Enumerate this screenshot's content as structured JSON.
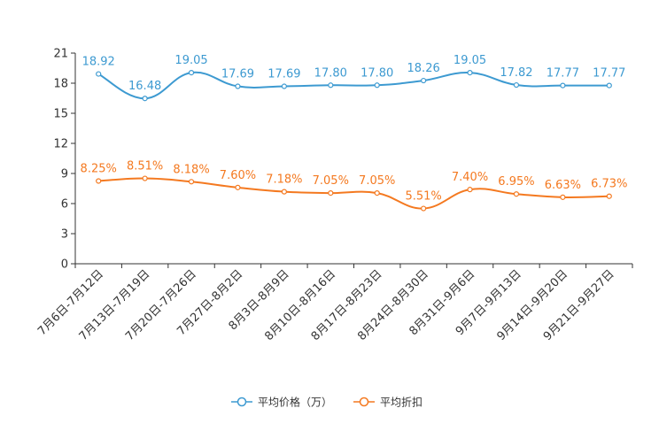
{
  "chart_data": {
    "type": "line",
    "categories": [
      "7月6日-7月12日",
      "7月13日-7月19日",
      "7月20日-7月26日",
      "7月27日-8月2日",
      "8月3日-8月9日",
      "8月10日-8月16日",
      "8月17日-8月23日",
      "8月24日-8月30日",
      "8月31日-9月6日",
      "9月7日-9月13日",
      "9月14日-9月20日",
      "9月21日-9月27日"
    ],
    "series": [
      {
        "name": "平均价格（万）",
        "color": "#3d9ad1",
        "values": [
          18.92,
          16.48,
          19.05,
          17.69,
          17.69,
          17.8,
          17.8,
          18.26,
          19.05,
          17.82,
          17.77,
          17.77
        ],
        "labels": [
          "18.92",
          "16.48",
          "19.05",
          "17.69",
          "17.69",
          "17.80",
          "17.80",
          "18.26",
          "19.05",
          "17.82",
          "17.77",
          "17.77"
        ]
      },
      {
        "name": "平均折扣",
        "color": "#f47920",
        "values": [
          8.25,
          8.51,
          8.18,
          7.6,
          7.18,
          7.05,
          7.05,
          5.51,
          7.4,
          6.95,
          6.63,
          6.73
        ],
        "labels": [
          "8.25%",
          "8.51%",
          "8.18%",
          "7.60%",
          "7.18%",
          "7.05%",
          "7.05%",
          "5.51%",
          "7.40%",
          "6.95%",
          "6.63%",
          "6.73%"
        ]
      }
    ],
    "y_ticks": [
      0,
      3,
      6,
      9,
      12,
      15,
      18,
      21
    ],
    "ylim": [
      0,
      21
    ],
    "title": "",
    "xlabel": "",
    "ylabel": "",
    "grid": false,
    "legend_position": "bottom-center"
  }
}
